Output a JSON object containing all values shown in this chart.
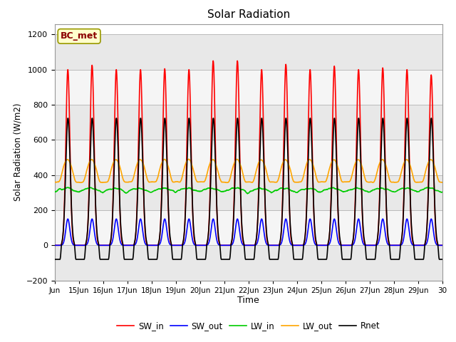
{
  "title": "Solar Radiation",
  "xlabel": "Time",
  "ylabel": "Solar Radiation (W/m2)",
  "ylim": [
    -200,
    1260
  ],
  "yticks": [
    -200,
    0,
    200,
    400,
    600,
    800,
    1000,
    1200
  ],
  "n_days": 16,
  "time_step_hours": 0.25,
  "annotation_text": "BC_met",
  "annotation_color": "#8B0000",
  "annotation_bg": "#FFFFCC",
  "series": {
    "SW_in": {
      "color": "#FF0000",
      "lw": 1.2,
      "label": "SW_in"
    },
    "SW_out": {
      "color": "#0000FF",
      "lw": 1.2,
      "label": "SW_out"
    },
    "LW_in": {
      "color": "#00CC00",
      "lw": 1.2,
      "label": "LW_in"
    },
    "LW_out": {
      "color": "#FFA500",
      "lw": 1.2,
      "label": "LW_out"
    },
    "Rnet": {
      "color": "#000000",
      "lw": 1.2,
      "label": "Rnet"
    }
  },
  "xtick_labels": [
    "Jun",
    "15Jun",
    "16Jun",
    "17Jun",
    "18Jun",
    "19Jun",
    "20Jun",
    "21Jun",
    "22Jun",
    "23Jun",
    "24Jun",
    "25Jun",
    "26Jun",
    "27Jun",
    "28Jun",
    "29Jun",
    "30"
  ],
  "grid_color": "#BBBBBB",
  "bg_color": "#DCDCDC",
  "band_color1": "#E8E8E8",
  "band_color2": "#F5F5F5"
}
